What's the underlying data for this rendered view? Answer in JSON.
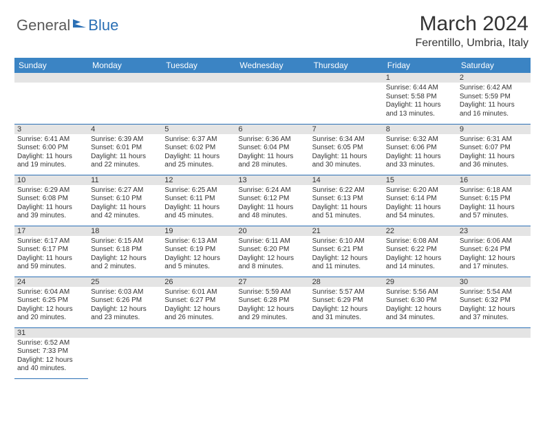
{
  "brand": {
    "part1": "General",
    "part2": "Blue"
  },
  "title": "March 2024",
  "location": "Ferentillo, Umbria, Italy",
  "colors": {
    "header_bg": "#3b84c4",
    "header_text": "#ffffff",
    "divider": "#2a6fb5",
    "daynum_bg": "#e4e4e4",
    "text": "#333333",
    "logo_gray": "#5a5a5a",
    "logo_blue": "#2a6fb5"
  },
  "weekdays": [
    "Sunday",
    "Monday",
    "Tuesday",
    "Wednesday",
    "Thursday",
    "Friday",
    "Saturday"
  ],
  "weeks": [
    [
      null,
      null,
      null,
      null,
      null,
      {
        "day": "1",
        "sunrise": "Sunrise: 6:44 AM",
        "sunset": "Sunset: 5:58 PM",
        "daylight1": "Daylight: 11 hours",
        "daylight2": "and 13 minutes."
      },
      {
        "day": "2",
        "sunrise": "Sunrise: 6:42 AM",
        "sunset": "Sunset: 5:59 PM",
        "daylight1": "Daylight: 11 hours",
        "daylight2": "and 16 minutes."
      }
    ],
    [
      {
        "day": "3",
        "sunrise": "Sunrise: 6:41 AM",
        "sunset": "Sunset: 6:00 PM",
        "daylight1": "Daylight: 11 hours",
        "daylight2": "and 19 minutes."
      },
      {
        "day": "4",
        "sunrise": "Sunrise: 6:39 AM",
        "sunset": "Sunset: 6:01 PM",
        "daylight1": "Daylight: 11 hours",
        "daylight2": "and 22 minutes."
      },
      {
        "day": "5",
        "sunrise": "Sunrise: 6:37 AM",
        "sunset": "Sunset: 6:02 PM",
        "daylight1": "Daylight: 11 hours",
        "daylight2": "and 25 minutes."
      },
      {
        "day": "6",
        "sunrise": "Sunrise: 6:36 AM",
        "sunset": "Sunset: 6:04 PM",
        "daylight1": "Daylight: 11 hours",
        "daylight2": "and 28 minutes."
      },
      {
        "day": "7",
        "sunrise": "Sunrise: 6:34 AM",
        "sunset": "Sunset: 6:05 PM",
        "daylight1": "Daylight: 11 hours",
        "daylight2": "and 30 minutes."
      },
      {
        "day": "8",
        "sunrise": "Sunrise: 6:32 AM",
        "sunset": "Sunset: 6:06 PM",
        "daylight1": "Daylight: 11 hours",
        "daylight2": "and 33 minutes."
      },
      {
        "day": "9",
        "sunrise": "Sunrise: 6:31 AM",
        "sunset": "Sunset: 6:07 PM",
        "daylight1": "Daylight: 11 hours",
        "daylight2": "and 36 minutes."
      }
    ],
    [
      {
        "day": "10",
        "sunrise": "Sunrise: 6:29 AM",
        "sunset": "Sunset: 6:08 PM",
        "daylight1": "Daylight: 11 hours",
        "daylight2": "and 39 minutes."
      },
      {
        "day": "11",
        "sunrise": "Sunrise: 6:27 AM",
        "sunset": "Sunset: 6:10 PM",
        "daylight1": "Daylight: 11 hours",
        "daylight2": "and 42 minutes."
      },
      {
        "day": "12",
        "sunrise": "Sunrise: 6:25 AM",
        "sunset": "Sunset: 6:11 PM",
        "daylight1": "Daylight: 11 hours",
        "daylight2": "and 45 minutes."
      },
      {
        "day": "13",
        "sunrise": "Sunrise: 6:24 AM",
        "sunset": "Sunset: 6:12 PM",
        "daylight1": "Daylight: 11 hours",
        "daylight2": "and 48 minutes."
      },
      {
        "day": "14",
        "sunrise": "Sunrise: 6:22 AM",
        "sunset": "Sunset: 6:13 PM",
        "daylight1": "Daylight: 11 hours",
        "daylight2": "and 51 minutes."
      },
      {
        "day": "15",
        "sunrise": "Sunrise: 6:20 AM",
        "sunset": "Sunset: 6:14 PM",
        "daylight1": "Daylight: 11 hours",
        "daylight2": "and 54 minutes."
      },
      {
        "day": "16",
        "sunrise": "Sunrise: 6:18 AM",
        "sunset": "Sunset: 6:15 PM",
        "daylight1": "Daylight: 11 hours",
        "daylight2": "and 57 minutes."
      }
    ],
    [
      {
        "day": "17",
        "sunrise": "Sunrise: 6:17 AM",
        "sunset": "Sunset: 6:17 PM",
        "daylight1": "Daylight: 11 hours",
        "daylight2": "and 59 minutes."
      },
      {
        "day": "18",
        "sunrise": "Sunrise: 6:15 AM",
        "sunset": "Sunset: 6:18 PM",
        "daylight1": "Daylight: 12 hours",
        "daylight2": "and 2 minutes."
      },
      {
        "day": "19",
        "sunrise": "Sunrise: 6:13 AM",
        "sunset": "Sunset: 6:19 PM",
        "daylight1": "Daylight: 12 hours",
        "daylight2": "and 5 minutes."
      },
      {
        "day": "20",
        "sunrise": "Sunrise: 6:11 AM",
        "sunset": "Sunset: 6:20 PM",
        "daylight1": "Daylight: 12 hours",
        "daylight2": "and 8 minutes."
      },
      {
        "day": "21",
        "sunrise": "Sunrise: 6:10 AM",
        "sunset": "Sunset: 6:21 PM",
        "daylight1": "Daylight: 12 hours",
        "daylight2": "and 11 minutes."
      },
      {
        "day": "22",
        "sunrise": "Sunrise: 6:08 AM",
        "sunset": "Sunset: 6:22 PM",
        "daylight1": "Daylight: 12 hours",
        "daylight2": "and 14 minutes."
      },
      {
        "day": "23",
        "sunrise": "Sunrise: 6:06 AM",
        "sunset": "Sunset: 6:24 PM",
        "daylight1": "Daylight: 12 hours",
        "daylight2": "and 17 minutes."
      }
    ],
    [
      {
        "day": "24",
        "sunrise": "Sunrise: 6:04 AM",
        "sunset": "Sunset: 6:25 PM",
        "daylight1": "Daylight: 12 hours",
        "daylight2": "and 20 minutes."
      },
      {
        "day": "25",
        "sunrise": "Sunrise: 6:03 AM",
        "sunset": "Sunset: 6:26 PM",
        "daylight1": "Daylight: 12 hours",
        "daylight2": "and 23 minutes."
      },
      {
        "day": "26",
        "sunrise": "Sunrise: 6:01 AM",
        "sunset": "Sunset: 6:27 PM",
        "daylight1": "Daylight: 12 hours",
        "daylight2": "and 26 minutes."
      },
      {
        "day": "27",
        "sunrise": "Sunrise: 5:59 AM",
        "sunset": "Sunset: 6:28 PM",
        "daylight1": "Daylight: 12 hours",
        "daylight2": "and 29 minutes."
      },
      {
        "day": "28",
        "sunrise": "Sunrise: 5:57 AM",
        "sunset": "Sunset: 6:29 PM",
        "daylight1": "Daylight: 12 hours",
        "daylight2": "and 31 minutes."
      },
      {
        "day": "29",
        "sunrise": "Sunrise: 5:56 AM",
        "sunset": "Sunset: 6:30 PM",
        "daylight1": "Daylight: 12 hours",
        "daylight2": "and 34 minutes."
      },
      {
        "day": "30",
        "sunrise": "Sunrise: 5:54 AM",
        "sunset": "Sunset: 6:32 PM",
        "daylight1": "Daylight: 12 hours",
        "daylight2": "and 37 minutes."
      }
    ],
    [
      {
        "day": "31",
        "sunrise": "Sunrise: 6:52 AM",
        "sunset": "Sunset: 7:33 PM",
        "daylight1": "Daylight: 12 hours",
        "daylight2": "and 40 minutes."
      },
      null,
      null,
      null,
      null,
      null,
      null
    ]
  ]
}
